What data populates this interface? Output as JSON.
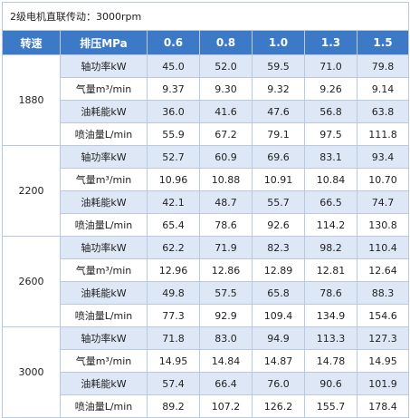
{
  "title": "2级电机直联传动：3000rpm",
  "header": {
    "speed_label": "转速",
    "pressure_label": "排压MPa",
    "pressures": [
      "0.6",
      "0.8",
      "1.0",
      "1.3",
      "1.5"
    ]
  },
  "groups": [
    {
      "speed": "1880",
      "rows": [
        {
          "param": "轴功率kW",
          "values": [
            "45.0",
            "52.0",
            "59.5",
            "71.0",
            "79.8"
          ]
        },
        {
          "param": "气量m³/min",
          "values": [
            "9.37",
            "9.30",
            "9.32",
            "9.26",
            "9.14"
          ]
        },
        {
          "param": "油耗能kW",
          "values": [
            "36.0",
            "41.6",
            "47.6",
            "56.8",
            "63.8"
          ]
        },
        {
          "param": "喷油量L/min",
          "values": [
            "55.9",
            "67.2",
            "79.1",
            "97.5",
            "111.8"
          ]
        }
      ]
    },
    {
      "speed": "2200",
      "rows": [
        {
          "param": "轴功率kW",
          "values": [
            "52.7",
            "60.9",
            "69.6",
            "83.1",
            "93.4"
          ]
        },
        {
          "param": "气量m³/min",
          "values": [
            "10.96",
            "10.88",
            "10.91",
            "10.84",
            "10.70"
          ]
        },
        {
          "param": "油耗能kW",
          "values": [
            "42.1",
            "48.7",
            "55.7",
            "66.5",
            "74.7"
          ]
        },
        {
          "param": "喷油量L/min",
          "values": [
            "65.4",
            "78.6",
            "92.6",
            "114.2",
            "130.8"
          ]
        }
      ]
    },
    {
      "speed": "2600",
      "rows": [
        {
          "param": "轴功率kW",
          "values": [
            "62.2",
            "71.9",
            "82.3",
            "98.2",
            "110.4"
          ]
        },
        {
          "param": "气量m³/min",
          "values": [
            "12.96",
            "12.86",
            "12.89",
            "12.81",
            "12.64"
          ]
        },
        {
          "param": "油耗能kW",
          "values": [
            "49.8",
            "57.5",
            "65.8",
            "78.6",
            "88.3"
          ]
        },
        {
          "param": "喷油量L/min",
          "values": [
            "77.3",
            "92.9",
            "109.4",
            "134.9",
            "154.6"
          ]
        }
      ]
    },
    {
      "speed": "3000",
      "rows": [
        {
          "param": "轴功率kW",
          "values": [
            "71.8",
            "83.0",
            "94.9",
            "113.3",
            "127.3"
          ]
        },
        {
          "param": "气量m³/min",
          "values": [
            "14.95",
            "14.84",
            "14.87",
            "14.78",
            "14.95"
          ]
        },
        {
          "param": "油耗能kW",
          "values": [
            "57.4",
            "66.4",
            "76.0",
            "90.6",
            "101.9"
          ]
        },
        {
          "param": "喷油量L/min",
          "values": [
            "89.2",
            "107.2",
            "126.2",
            "155.7",
            "178.4"
          ]
        }
      ]
    }
  ],
  "colors": {
    "header_bg": "#3c79c6",
    "alt_row_bg": "#dde7f5",
    "border": "#b9c9de"
  }
}
